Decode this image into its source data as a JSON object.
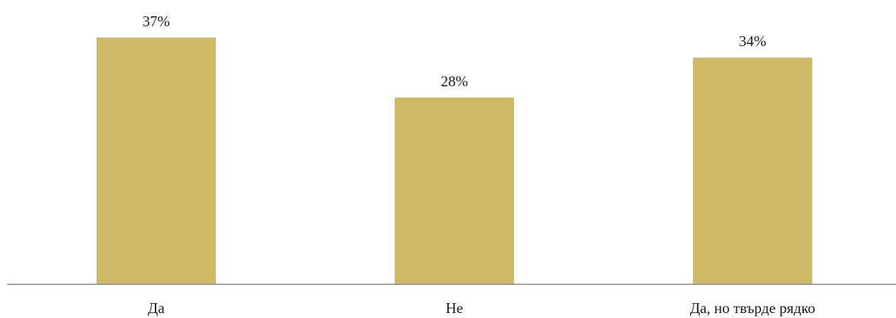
{
  "chart_data": {
    "type": "bar",
    "categories": [
      "Да",
      "Не",
      "Да, но твърде рядко"
    ],
    "values": [
      37,
      28,
      34
    ],
    "value_labels": [
      "37%",
      "28%",
      "34%"
    ],
    "unit": "%",
    "title": "",
    "xlabel": "",
    "ylabel": "",
    "ylim": [
      0,
      37
    ],
    "grid": false,
    "legend": "none",
    "colors": {
      "bar": "#CFB967",
      "axis": "#808080",
      "text": "#1a1a1a"
    }
  }
}
